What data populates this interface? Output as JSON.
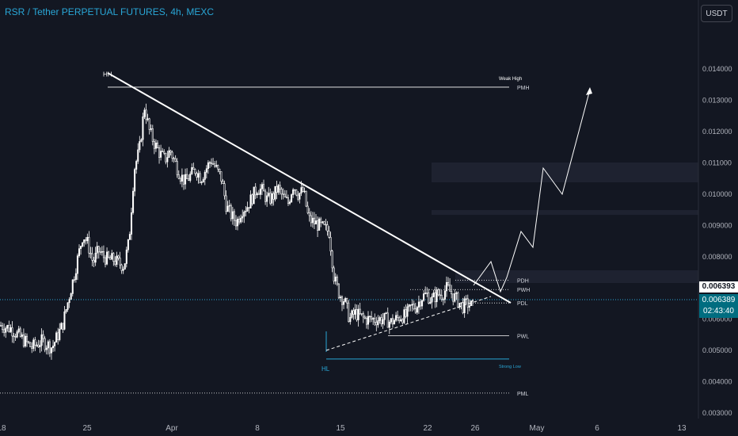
{
  "header": {
    "title": "RSR / Tether PERPETUAL FUTURES, 4h, MEXC",
    "currency_button": "USDT"
  },
  "price_tags": {
    "last_price": "0.006393",
    "current_price": "0.006389",
    "countdown": "02:43:40"
  },
  "colors": {
    "background": "#131722",
    "candle": "#ffffff",
    "accent": "#29a6d6",
    "current_price_tag": "#006d80"
  },
  "chart_data": {
    "type": "candlestick",
    "title": "RSR / Tether PERPETUAL FUTURES, 4h, MEXC",
    "ylim": [
      0.0028,
      0.0158
    ],
    "y_ticks": [
      "0.003000",
      "0.004000",
      "0.005000",
      "0.006000",
      "0.007000",
      "0.008000",
      "0.009000",
      "0.010000",
      "0.011000",
      "0.012000",
      "0.013000",
      "0.014000"
    ],
    "x_ticks": [
      "18",
      "25",
      "Apr",
      "8",
      "15",
      "22",
      "26",
      "May",
      "6",
      "13"
    ],
    "grid": false,
    "close_path": [
      [
        0,
        0.0058
      ],
      [
        2,
        0.0057
      ],
      [
        4,
        0.0054
      ],
      [
        6,
        0.0051
      ],
      [
        8,
        0.0053
      ],
      [
        10,
        0.0051
      ],
      [
        12,
        0.0058
      ],
      [
        14,
        0.0072
      ],
      [
        16,
        0.0087
      ],
      [
        17,
        0.0084
      ],
      [
        18,
        0.0078
      ],
      [
        19,
        0.0082
      ],
      [
        20,
        0.008
      ],
      [
        21,
        0.0079
      ],
      [
        22,
        0.0079
      ],
      [
        23,
        0.0078
      ],
      [
        24,
        0.0077
      ],
      [
        25,
        0.0085
      ],
      [
        26,
        0.0108
      ],
      [
        27,
        0.0114
      ],
      [
        28,
        0.0128
      ],
      [
        29,
        0.012
      ],
      [
        30,
        0.0116
      ],
      [
        31,
        0.0113
      ],
      [
        32,
        0.0111
      ],
      [
        33,
        0.0114
      ],
      [
        34,
        0.011
      ],
      [
        35,
        0.0106
      ],
      [
        36,
        0.0104
      ],
      [
        37,
        0.0106
      ],
      [
        38,
        0.0108
      ],
      [
        39,
        0.0105
      ],
      [
        40,
        0.0108
      ],
      [
        41,
        0.0111
      ],
      [
        42,
        0.0108
      ],
      [
        43,
        0.0105
      ],
      [
        44,
        0.0096
      ],
      [
        45,
        0.0093
      ],
      [
        46,
        0.0091
      ],
      [
        47,
        0.0095
      ],
      [
        48,
        0.0096
      ],
      [
        49,
        0.0099
      ],
      [
        50,
        0.0102
      ],
      [
        51,
        0.0101
      ],
      [
        52,
        0.0098
      ],
      [
        53,
        0.0099
      ],
      [
        54,
        0.0102
      ],
      [
        55,
        0.0099
      ],
      [
        56,
        0.0097
      ],
      [
        57,
        0.0103
      ],
      [
        58,
        0.01
      ],
      [
        59,
        0.0101
      ],
      [
        60,
        0.0092
      ],
      [
        61,
        0.0091
      ],
      [
        62,
        0.009
      ],
      [
        63,
        0.0089
      ],
      [
        64,
        0.0088
      ],
      [
        65,
        0.0073
      ],
      [
        66,
        0.0068
      ],
      [
        67,
        0.0066
      ],
      [
        68,
        0.006
      ],
      [
        69,
        0.0062
      ],
      [
        70,
        0.0061
      ],
      [
        71,
        0.006
      ],
      [
        72,
        0.006
      ],
      [
        73,
        0.006
      ],
      [
        74,
        0.006
      ],
      [
        75,
        0.006
      ],
      [
        76,
        0.0059
      ],
      [
        77,
        0.006
      ],
      [
        78,
        0.0061
      ],
      [
        79,
        0.0061
      ],
      [
        80,
        0.0064
      ],
      [
        81,
        0.0064
      ],
      [
        82,
        0.0067
      ],
      [
        83,
        0.0068
      ],
      [
        84,
        0.0066
      ],
      [
        85,
        0.0068
      ],
      [
        86,
        0.0068
      ],
      [
        87,
        0.007
      ],
      [
        88,
        0.0068
      ],
      [
        89,
        0.0066
      ],
      [
        90,
        0.0064
      ],
      [
        91,
        0.0065
      ],
      [
        92,
        0.0064
      ]
    ],
    "series": [
      {
        "name": "PMH",
        "type": "horizontal_line",
        "value": 0.01342
      },
      {
        "name": "PDH",
        "type": "horizontal_line",
        "value": 0.00725
      },
      {
        "name": "PWH",
        "type": "horizontal_line",
        "value": 0.00695
      },
      {
        "name": "PDL",
        "type": "horizontal_line",
        "value": 0.00652
      },
      {
        "name": "PWL",
        "type": "horizontal_line",
        "value": 0.00547
      },
      {
        "name": "PML",
        "type": "horizontal_line",
        "value": 0.00364
      },
      {
        "name": "Strong Low",
        "type": "horizontal_line",
        "value": 0.00473
      }
    ],
    "annotations": [
      {
        "text": "HH",
        "value": 0.01345
      },
      {
        "text": "Weak High",
        "value": 0.01342
      },
      {
        "text": "HL",
        "value": 0.00473
      },
      {
        "text": "Strong Low",
        "value": 0.00473
      }
    ]
  }
}
